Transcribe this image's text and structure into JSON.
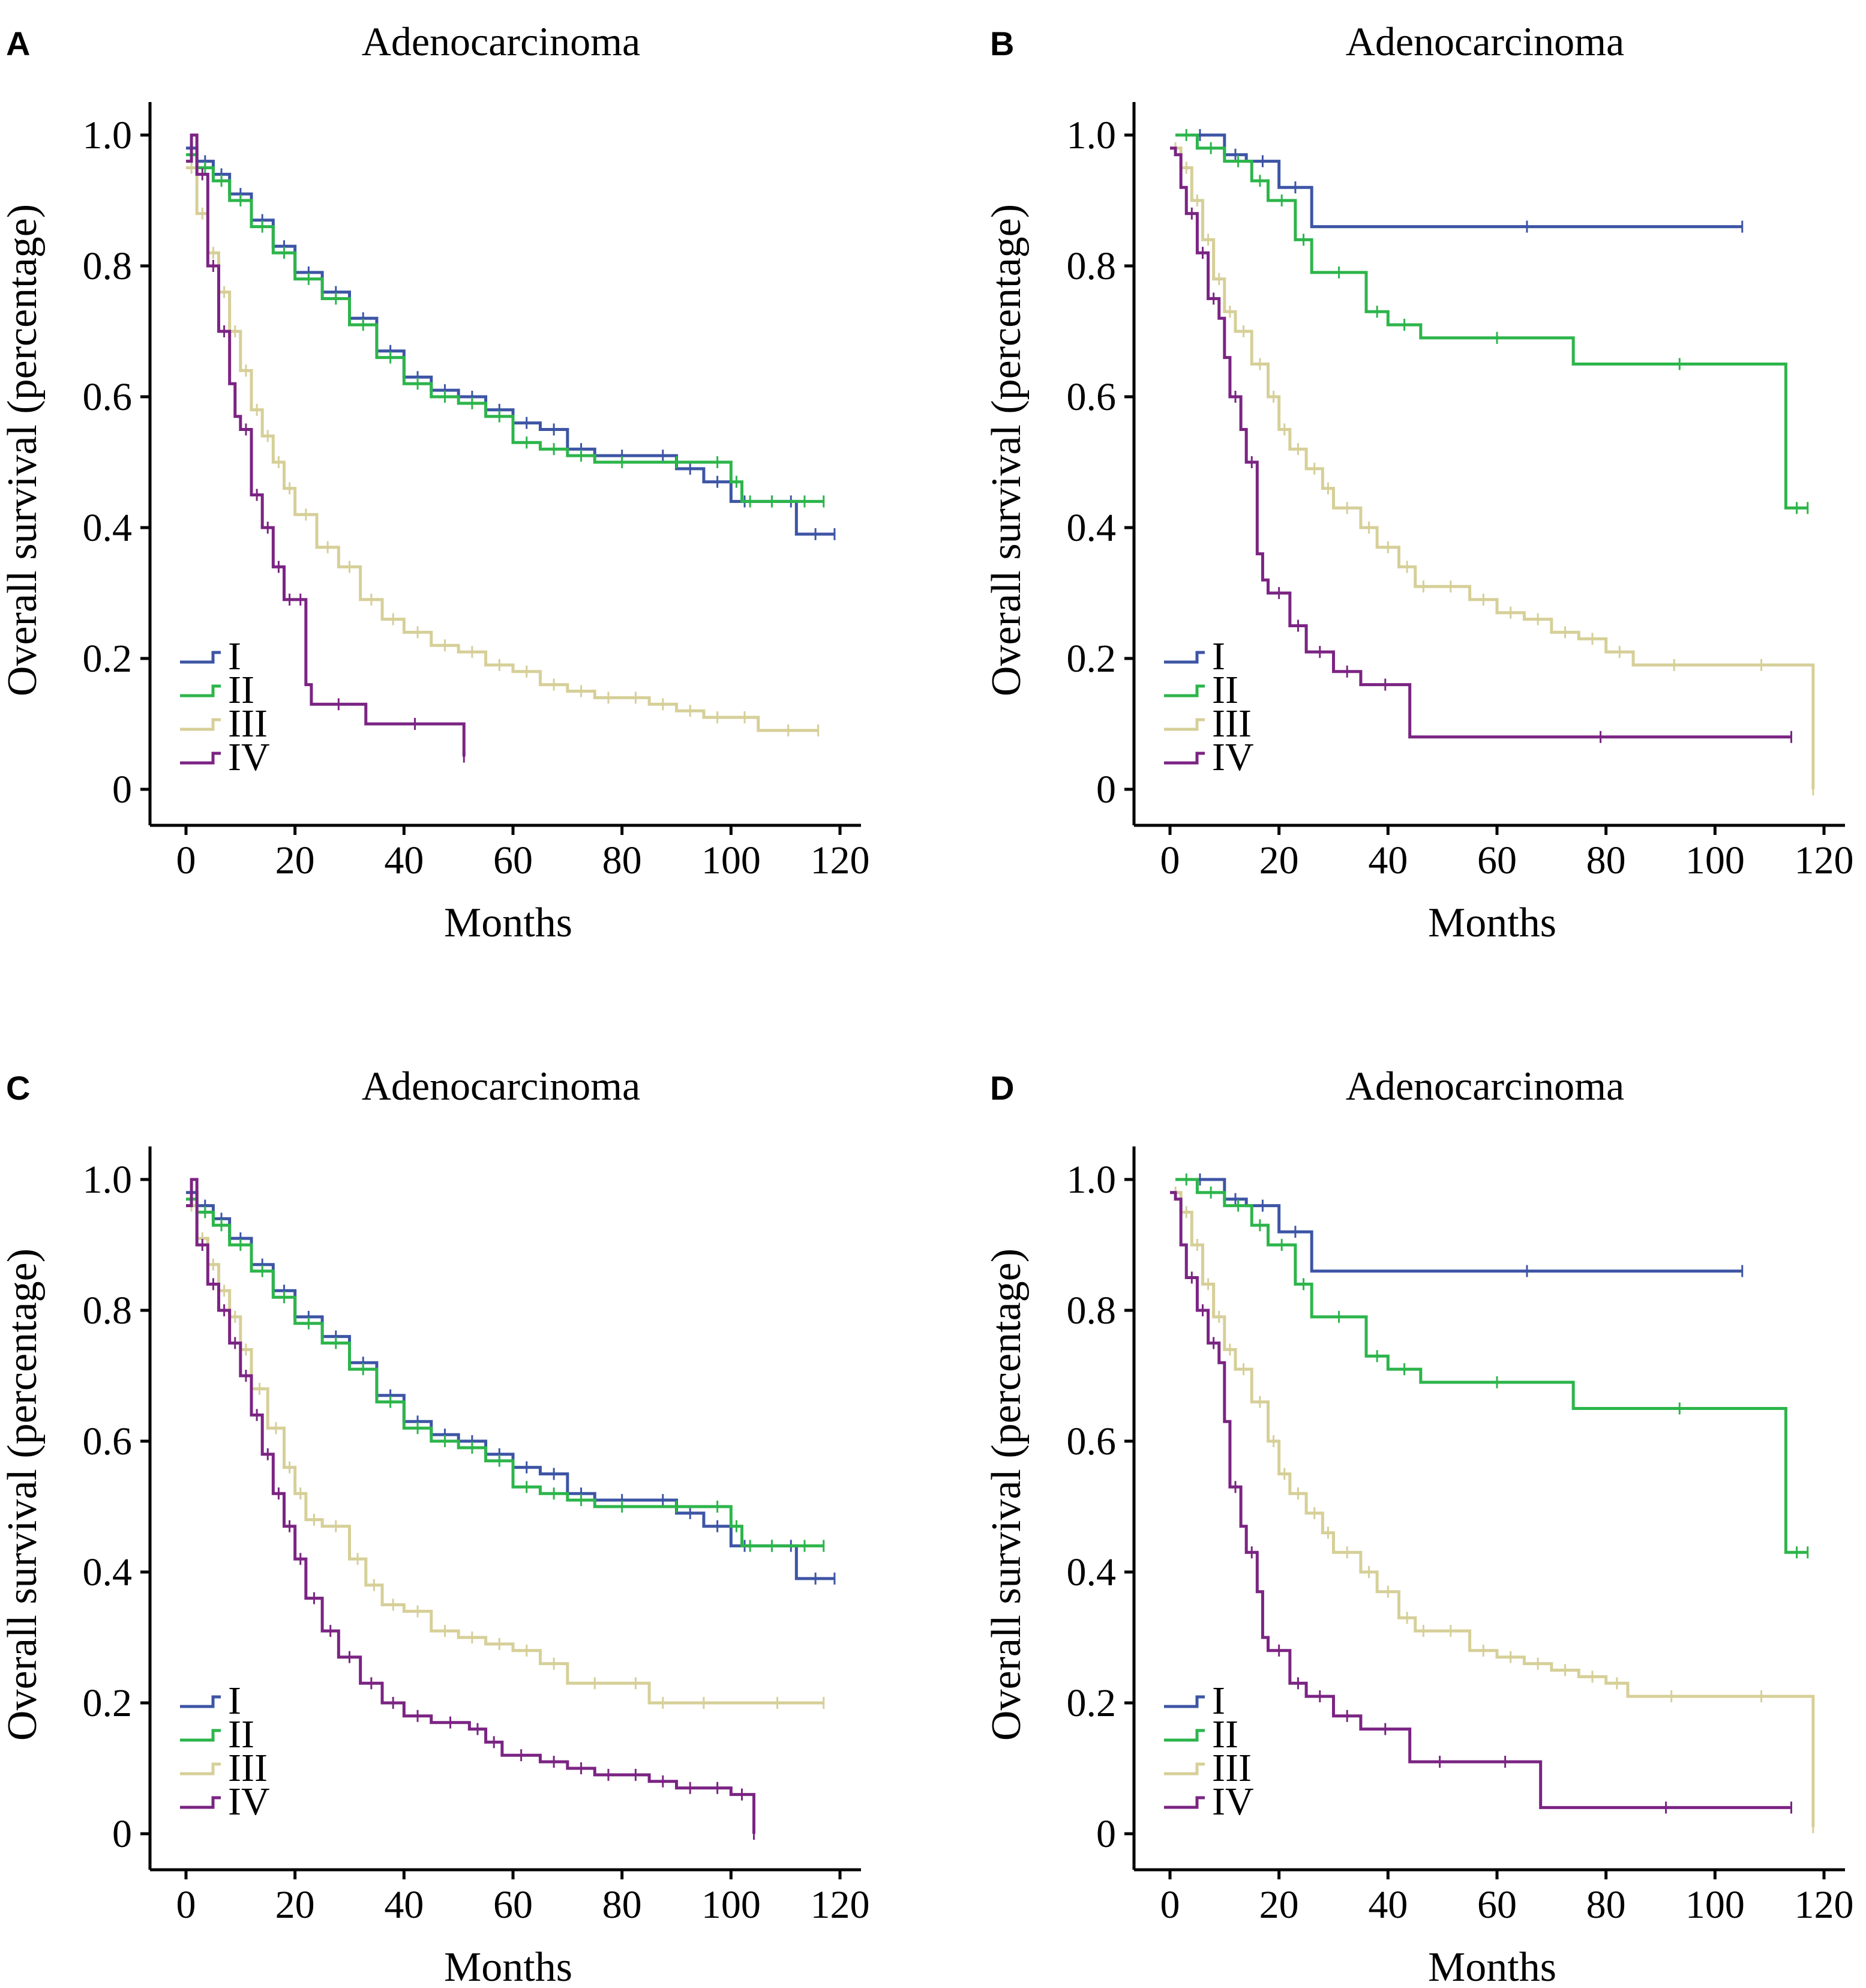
{
  "figure_caption": "",
  "colors": {
    "I": "#3d55a5",
    "II": "#2db54b",
    "III": "#d6cf98",
    "IV": "#7b2483"
  },
  "chart_data": [
    {
      "type": "line",
      "panel": "A",
      "title": "Adenocarcinoma",
      "xlabel": "Months",
      "ylabel": "Overall survival (percentage)",
      "xlim": [
        0,
        120
      ],
      "ylim": [
        0,
        1
      ],
      "x_ticks": [
        "0",
        "20",
        "40",
        "60",
        "80",
        "100",
        "120"
      ],
      "y_ticks": [
        "0",
        "0.2",
        "0.4",
        "0.6",
        "0.8",
        "1.0"
      ],
      "legend": [
        "I",
        "II",
        "III",
        "IV"
      ],
      "legend_position": "bottom-left",
      "series": [
        {
          "name": "I",
          "color": "#3d55a5",
          "x": [
            0,
            2,
            5,
            8,
            12,
            16,
            20,
            25,
            30,
            35,
            40,
            45,
            50,
            55,
            60,
            65,
            70,
            75,
            85,
            90,
            95,
            100,
            105,
            110,
            112,
            119
          ],
          "y": [
            0.98,
            0.96,
            0.94,
            0.91,
            0.87,
            0.83,
            0.79,
            0.76,
            0.72,
            0.67,
            0.63,
            0.61,
            0.6,
            0.58,
            0.56,
            0.55,
            0.52,
            0.51,
            0.51,
            0.49,
            0.47,
            0.44,
            0.44,
            0.44,
            0.39,
            0.39
          ]
        },
        {
          "name": "II",
          "color": "#2db54b",
          "x": [
            0,
            2,
            5,
            8,
            12,
            16,
            20,
            25,
            30,
            35,
            40,
            45,
            50,
            55,
            60,
            65,
            70,
            75,
            85,
            95,
            100,
            102,
            105,
            110,
            117
          ],
          "y": [
            0.97,
            0.95,
            0.93,
            0.9,
            0.86,
            0.82,
            0.78,
            0.75,
            0.71,
            0.66,
            0.62,
            0.6,
            0.59,
            0.57,
            0.53,
            0.52,
            0.51,
            0.5,
            0.5,
            0.5,
            0.47,
            0.44,
            0.44,
            0.44,
            0.44
          ]
        },
        {
          "name": "III",
          "color": "#d6cf98",
          "x": [
            0,
            2,
            4,
            6,
            8,
            10,
            12,
            14,
            16,
            18,
            20,
            24,
            28,
            32,
            36,
            40,
            45,
            50,
            55,
            60,
            65,
            70,
            75,
            80,
            85,
            90,
            95,
            100,
            105,
            116
          ],
          "y": [
            0.95,
            0.88,
            0.82,
            0.76,
            0.7,
            0.64,
            0.58,
            0.54,
            0.5,
            0.46,
            0.42,
            0.37,
            0.34,
            0.29,
            0.26,
            0.24,
            0.22,
            0.21,
            0.19,
            0.18,
            0.16,
            0.15,
            0.14,
            0.14,
            0.13,
            0.12,
            0.11,
            0.11,
            0.09,
            0.09
          ]
        },
        {
          "name": "IV",
          "color": "#7b2483",
          "x": [
            0,
            1,
            2,
            4,
            6,
            8,
            9,
            10,
            12,
            14,
            16,
            18,
            20,
            22,
            23,
            33,
            51
          ],
          "y": [
            0.96,
            1.0,
            0.94,
            0.8,
            0.7,
            0.62,
            0.57,
            0.55,
            0.45,
            0.4,
            0.34,
            0.29,
            0.29,
            0.16,
            0.13,
            0.1,
            0.05
          ]
        }
      ]
    },
    {
      "type": "line",
      "panel": "B",
      "title": "Adenocarcinoma",
      "xlabel": "Months",
      "ylabel": "Overall survival (percentage)",
      "xlim": [
        0,
        120
      ],
      "ylim": [
        0,
        1
      ],
      "x_ticks": [
        "0",
        "20",
        "40",
        "60",
        "80",
        "100",
        "120"
      ],
      "y_ticks": [
        "0",
        "0.2",
        "0.4",
        "0.6",
        "0.8",
        "1.0"
      ],
      "legend": [
        "I",
        "II",
        "III",
        "IV"
      ],
      "legend_position": "bottom-left",
      "series": [
        {
          "name": "I",
          "color": "#3d55a5",
          "x": [
            1,
            10,
            14,
            20,
            26,
            105
          ],
          "y": [
            1.0,
            0.97,
            0.96,
            0.92,
            0.86,
            0.86
          ]
        },
        {
          "name": "II",
          "color": "#2db54b",
          "x": [
            1,
            5,
            10,
            15,
            18,
            23,
            26,
            36,
            40,
            46,
            74,
            113,
            117
          ],
          "y": [
            1.0,
            0.98,
            0.96,
            0.93,
            0.9,
            0.84,
            0.79,
            0.73,
            0.71,
            0.69,
            0.65,
            0.43,
            0.43
          ]
        },
        {
          "name": "III",
          "color": "#d6cf98",
          "x": [
            0,
            2,
            4,
            6,
            8,
            10,
            12,
            15,
            18,
            20,
            22,
            25,
            28,
            30,
            35,
            38,
            42,
            45,
            48,
            55,
            60,
            65,
            70,
            75,
            80,
            85,
            100,
            117,
            118
          ],
          "y": [
            0.98,
            0.95,
            0.9,
            0.84,
            0.78,
            0.73,
            0.7,
            0.65,
            0.6,
            0.55,
            0.52,
            0.49,
            0.46,
            0.43,
            0.4,
            0.37,
            0.34,
            0.31,
            0.31,
            0.29,
            0.27,
            0.26,
            0.24,
            0.23,
            0.21,
            0.19,
            0.19,
            0.19,
            0.0
          ]
        },
        {
          "name": "IV",
          "color": "#7b2483",
          "x": [
            0,
            1,
            2,
            3,
            5,
            7,
            9,
            10,
            11,
            13,
            14,
            16,
            17,
            18,
            22,
            25,
            30,
            35,
            44,
            114
          ],
          "y": [
            0.98,
            0.97,
            0.92,
            0.88,
            0.82,
            0.75,
            0.72,
            0.66,
            0.6,
            0.55,
            0.5,
            0.36,
            0.32,
            0.3,
            0.25,
            0.21,
            0.18,
            0.16,
            0.08,
            0.08
          ]
        }
      ]
    },
    {
      "type": "line",
      "panel": "C",
      "title": "Adenocarcinoma",
      "xlabel": "Months",
      "ylabel": "Overall survival (percentage)",
      "xlim": [
        0,
        120
      ],
      "ylim": [
        0,
        1
      ],
      "x_ticks": [
        "0",
        "20",
        "40",
        "60",
        "80",
        "100",
        "120"
      ],
      "y_ticks": [
        "0",
        "0.2",
        "0.4",
        "0.6",
        "0.8",
        "1.0"
      ],
      "legend": [
        "I",
        "II",
        "III",
        "IV"
      ],
      "legend_position": "bottom-left",
      "series": [
        {
          "name": "I",
          "color": "#3d55a5",
          "x": [
            0,
            2,
            5,
            8,
            12,
            16,
            20,
            25,
            30,
            35,
            40,
            45,
            50,
            55,
            60,
            65,
            70,
            75,
            85,
            90,
            95,
            100,
            105,
            110,
            112,
            119
          ],
          "y": [
            0.98,
            0.96,
            0.94,
            0.91,
            0.87,
            0.83,
            0.79,
            0.76,
            0.72,
            0.67,
            0.63,
            0.61,
            0.6,
            0.58,
            0.56,
            0.55,
            0.52,
            0.51,
            0.51,
            0.49,
            0.47,
            0.44,
            0.44,
            0.44,
            0.39,
            0.39
          ]
        },
        {
          "name": "II",
          "color": "#2db54b",
          "x": [
            0,
            2,
            5,
            8,
            12,
            16,
            20,
            25,
            30,
            35,
            40,
            45,
            50,
            55,
            60,
            65,
            70,
            75,
            85,
            95,
            100,
            102,
            105,
            110,
            117
          ],
          "y": [
            0.97,
            0.95,
            0.93,
            0.9,
            0.86,
            0.82,
            0.78,
            0.75,
            0.71,
            0.66,
            0.62,
            0.6,
            0.59,
            0.57,
            0.53,
            0.52,
            0.51,
            0.5,
            0.5,
            0.5,
            0.47,
            0.44,
            0.44,
            0.44,
            0.44
          ]
        },
        {
          "name": "III",
          "color": "#d6cf98",
          "x": [
            0,
            2,
            4,
            6,
            8,
            10,
            12,
            15,
            18,
            20,
            22,
            25,
            30,
            33,
            36,
            40,
            45,
            50,
            55,
            60,
            65,
            70,
            80,
            85,
            90,
            100,
            117
          ],
          "y": [
            0.96,
            0.91,
            0.87,
            0.83,
            0.79,
            0.74,
            0.68,
            0.62,
            0.56,
            0.52,
            0.48,
            0.47,
            0.42,
            0.38,
            0.35,
            0.34,
            0.31,
            0.3,
            0.29,
            0.28,
            0.26,
            0.23,
            0.23,
            0.2,
            0.2,
            0.2,
            0.2
          ]
        },
        {
          "name": "IV",
          "color": "#7b2483",
          "x": [
            0,
            1,
            2,
            4,
            6,
            8,
            10,
            12,
            14,
            16,
            18,
            20,
            22,
            25,
            28,
            32,
            36,
            40,
            45,
            52,
            55,
            58,
            65,
            70,
            75,
            80,
            85,
            90,
            95,
            100,
            104,
            104.2
          ],
          "y": [
            0.96,
            1.0,
            0.9,
            0.84,
            0.8,
            0.75,
            0.7,
            0.64,
            0.58,
            0.52,
            0.47,
            0.42,
            0.36,
            0.31,
            0.27,
            0.23,
            0.2,
            0.18,
            0.17,
            0.16,
            0.14,
            0.12,
            0.11,
            0.1,
            0.09,
            0.09,
            0.08,
            0.07,
            0.07,
            0.06,
            0.06,
            0.0
          ]
        }
      ]
    },
    {
      "type": "line",
      "panel": "D",
      "title": "Adenocarcinoma",
      "xlabel": "Months",
      "ylabel": "Overall survival (percentage)",
      "xlim": [
        0,
        120
      ],
      "ylim": [
        0,
        1
      ],
      "x_ticks": [
        "0",
        "20",
        "40",
        "60",
        "80",
        "100",
        "120"
      ],
      "y_ticks": [
        "0",
        "0.2",
        "0.4",
        "0.6",
        "0.8",
        "1.0"
      ],
      "legend": [
        "I",
        "II",
        "III",
        "IV"
      ],
      "legend_position": "bottom-left",
      "series": [
        {
          "name": "I",
          "color": "#3d55a5",
          "x": [
            1,
            10,
            14,
            20,
            26,
            105
          ],
          "y": [
            1.0,
            0.97,
            0.96,
            0.92,
            0.86,
            0.86
          ]
        },
        {
          "name": "II",
          "color": "#2db54b",
          "x": [
            1,
            5,
            10,
            15,
            18,
            23,
            26,
            36,
            40,
            46,
            74,
            113,
            117
          ],
          "y": [
            1.0,
            0.98,
            0.96,
            0.93,
            0.9,
            0.84,
            0.79,
            0.73,
            0.71,
            0.69,
            0.65,
            0.43,
            0.43
          ]
        },
        {
          "name": "III",
          "color": "#d6cf98",
          "x": [
            0,
            2,
            4,
            6,
            8,
            10,
            12,
            15,
            18,
            20,
            22,
            25,
            28,
            30,
            35,
            38,
            42,
            45,
            48,
            55,
            60,
            65,
            70,
            75,
            80,
            84,
            100,
            117,
            118
          ],
          "y": [
            0.98,
            0.95,
            0.9,
            0.84,
            0.79,
            0.74,
            0.71,
            0.66,
            0.6,
            0.55,
            0.52,
            0.49,
            0.46,
            0.43,
            0.4,
            0.37,
            0.33,
            0.31,
            0.31,
            0.28,
            0.27,
            0.26,
            0.25,
            0.24,
            0.23,
            0.21,
            0.21,
            0.21,
            0.01
          ]
        },
        {
          "name": "IV",
          "color": "#7b2483",
          "x": [
            0,
            1,
            2,
            3,
            5,
            7,
            9,
            10,
            11,
            13,
            14,
            16,
            17,
            18,
            22,
            25,
            30,
            35,
            44,
            55,
            68,
            114
          ],
          "y": [
            0.98,
            0.97,
            0.9,
            0.85,
            0.8,
            0.75,
            0.72,
            0.63,
            0.53,
            0.47,
            0.43,
            0.37,
            0.3,
            0.28,
            0.23,
            0.21,
            0.18,
            0.16,
            0.11,
            0.11,
            0.04,
            0.04
          ]
        }
      ]
    }
  ]
}
